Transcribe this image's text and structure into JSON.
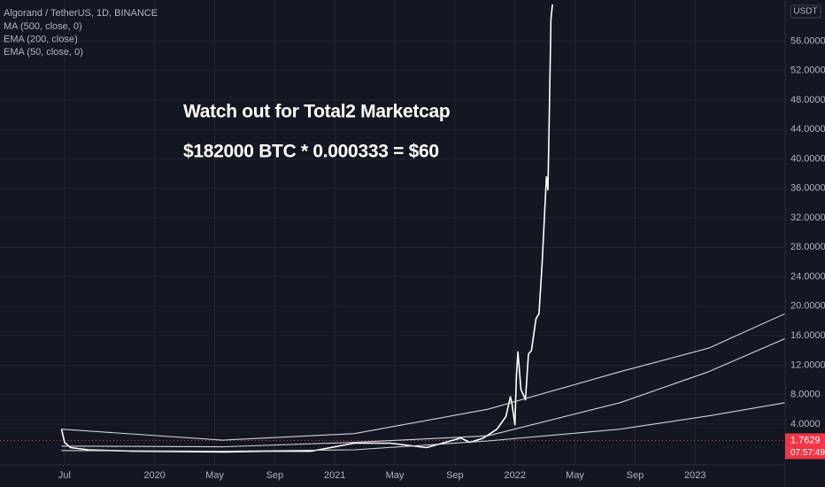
{
  "chart_data": {
    "type": "line",
    "title": "Algorand / TetherUS, 1D, BINANCE",
    "annotations": [
      "Watch out for Total2 Marketcap",
      "$182000 BTC * 0.000333 = $60"
    ],
    "currency": "USDT",
    "last_price": 1.7629,
    "last_price_color": "#f23645",
    "countdown": "07:57:49",
    "series": [
      {
        "color": "#ffffff",
        "x": [
          5.8,
          6.0,
          6.4,
          7.6,
          10.6,
          13.5,
          16.5,
          19.4,
          22.4,
          25.3,
          27.7,
          30.1,
          32.4,
          33.0,
          33.9,
          34.8,
          35.4,
          35.7,
          35.8,
          36.0,
          36.1,
          36.2,
          36.4,
          36.7,
          36.9,
          37.1,
          37.4,
          37.6,
          37.8,
          38.1,
          38.2,
          38.3,
          38.4,
          38.5
        ],
        "values": [
          3.3,
          1.5,
          0.8,
          0.5,
          0.3,
          0.25,
          0.2,
          0.3,
          0.3,
          1.4,
          1.4,
          0.8,
          2.1,
          1.5,
          2.1,
          3.3,
          5,
          7.7,
          6.8,
          3.9,
          10.5,
          13.8,
          8.7,
          7.3,
          13.5,
          14,
          18.3,
          19,
          25.5,
          37.6,
          35.8,
          47.2,
          59,
          61
        ]
      },
      {
        "name": "MA (500, close, 0)",
        "color": "#d1d4dc",
        "x": [
          5.8,
          16.5,
          25.3,
          34.2,
          43.0,
          48.9,
          54.0
        ],
        "values": [
          3.3,
          1.8,
          2.7,
          6.0,
          11.1,
          14.3,
          19.0
        ]
      },
      {
        "name": "EMA (200, close)",
        "color": "#d1d4dc",
        "x": [
          5.8,
          16.5,
          25.3,
          34.2,
          43.0,
          48.9,
          54.0
        ],
        "values": [
          1.0,
          0.9,
          1.5,
          2.4,
          6.9,
          11.1,
          15.6
        ]
      },
      {
        "name": "EMA (50, close, 0)",
        "color": "#d1d4dc",
        "x": [
          5.8,
          16.5,
          25.3,
          34.2,
          43.0,
          48.9,
          54.0
        ],
        "values": [
          0.4,
          0.3,
          0.5,
          1.7,
          3.3,
          5.1,
          6.9
        ]
      }
    ],
    "xlim": [
      1.7,
      54
    ],
    "ylim": [
      -1.55,
      61.6
    ],
    "xticks": [
      {
        "value": 6,
        "label": "Jul"
      },
      {
        "value": 12,
        "label": "2020"
      },
      {
        "value": 16,
        "label": "May"
      },
      {
        "value": 20,
        "label": "Sep"
      },
      {
        "value": 24,
        "label": "2021"
      },
      {
        "value": 28,
        "label": "May"
      },
      {
        "value": 32,
        "label": "Sep"
      },
      {
        "value": 36,
        "label": "2022"
      },
      {
        "value": 40,
        "label": "May"
      },
      {
        "value": 44,
        "label": "Sep"
      },
      {
        "value": 48,
        "label": "2023"
      }
    ],
    "yticks": [
      {
        "value": 4,
        "label": "4.0000"
      },
      {
        "value": 8,
        "label": "8.0000"
      },
      {
        "value": 12,
        "label": "12.0000"
      },
      {
        "value": 16,
        "label": "16.0000"
      },
      {
        "value": 20,
        "label": "20.0000"
      },
      {
        "value": 24,
        "label": "24.0000"
      },
      {
        "value": 28,
        "label": "28.0000"
      },
      {
        "value": 32,
        "label": "32.0000"
      },
      {
        "value": 36,
        "label": "36.0000"
      },
      {
        "value": 40,
        "label": "40.0000"
      },
      {
        "value": 44,
        "label": "44.0000"
      },
      {
        "value": 48,
        "label": "48.0000"
      },
      {
        "value": 52,
        "label": "52.0000"
      },
      {
        "value": 56,
        "label": "56.0000"
      }
    ],
    "grid": true
  }
}
